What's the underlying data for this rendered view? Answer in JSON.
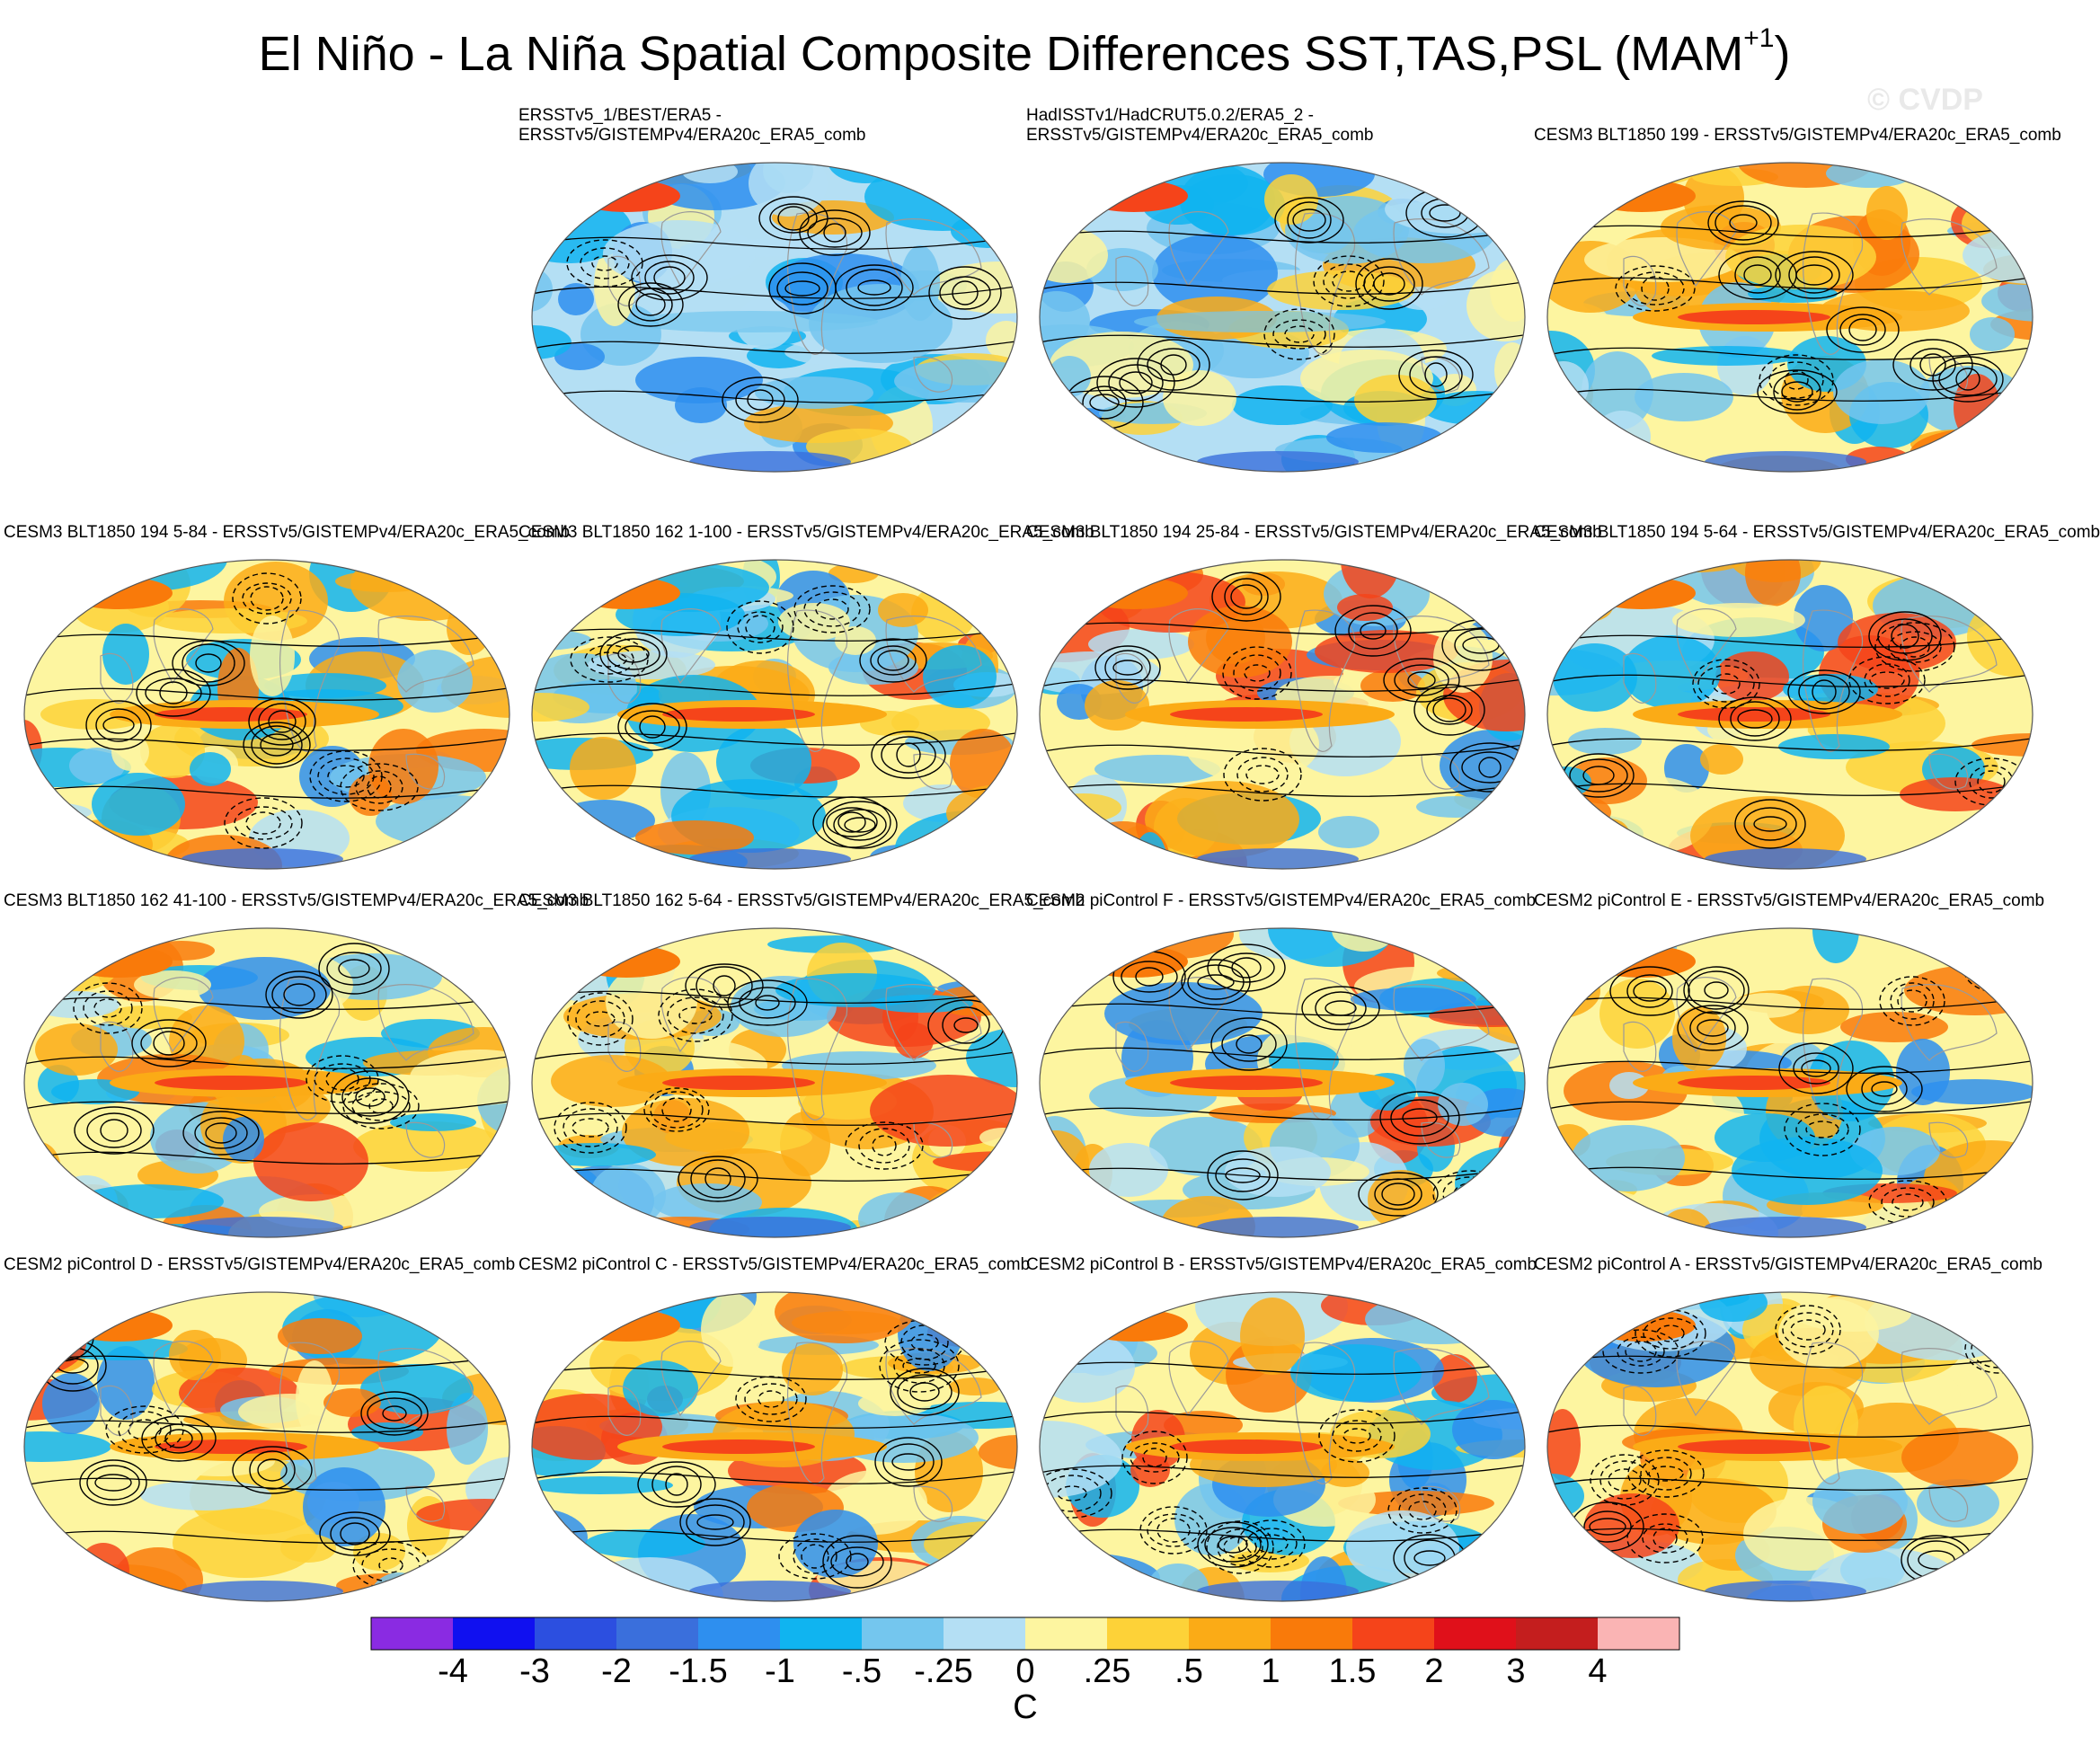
{
  "figure": {
    "title_main": "El Niño - La Niña Spatial Composite Differences SST,TAS,PSL (MAM",
    "title_sup": "+1",
    "title_close": ")",
    "watermark": "© CVDP"
  },
  "panels": [
    {
      "row": 0,
      "col": 1,
      "lines": [
        "ERSSTv5_1/BEST/ERA5 -",
        "ERSSTv5/GISTEMPv4/ERA20c_ERA5_comb"
      ],
      "pattern": "obs"
    },
    {
      "row": 0,
      "col": 2,
      "lines": [
        "HadISSTv1/HadCRUT5.0.2/ERA5_2 -",
        "ERSSTv5/GISTEMPv4/ERA20c_ERA5_comb"
      ],
      "pattern": "obs"
    },
    {
      "row": 0,
      "col": 3,
      "lines": [
        "",
        "CESM3 BLT1850 199 - ERSSTv5/GISTEMPv4/ERA20c_ERA5_comb"
      ],
      "pattern": "model"
    },
    {
      "row": 1,
      "col": 0,
      "lines": [
        "CESM3 BLT1850 194 5-84 - ERSSTv5/GISTEMPv4/ERA20c_ERA5_comb"
      ],
      "pattern": "model",
      "clip_left": true
    },
    {
      "row": 1,
      "col": 1,
      "lines": [
        "CESM3 BLT1850 162 1-100 - ERSSTv5/GISTEMPv4/ERA20c_ERA5_comb"
      ],
      "pattern": "model"
    },
    {
      "row": 1,
      "col": 2,
      "lines": [
        "CESM3 BLT1850 194 25-84 - ERSSTv5/GISTEMPv4/ERA20c_ERA5_comb"
      ],
      "pattern": "model"
    },
    {
      "row": 1,
      "col": 3,
      "lines": [
        "CESM3 BLT1850 194 5-64 - ERSSTv5/GISTEMPv4/ERA20c_ERA5_comb"
      ],
      "pattern": "model"
    },
    {
      "row": 2,
      "col": 0,
      "lines": [
        "CESM3 BLT1850 162 41-100 - ERSSTv5/GISTEMPv4/ERA20c_ERA5_comb"
      ],
      "pattern": "model",
      "clip_left": true
    },
    {
      "row": 2,
      "col": 1,
      "lines": [
        "CESM3 BLT1850 162 5-64 - ERSSTv5/GISTEMPv4/ERA20c_ERA5_comb"
      ],
      "pattern": "model"
    },
    {
      "row": 2,
      "col": 2,
      "lines": [
        "CESM2 piControl F - ERSSTv5/GISTEMPv4/ERA20c_ERA5_comb"
      ],
      "pattern": "model"
    },
    {
      "row": 2,
      "col": 3,
      "lines": [
        "CESM2 piControl E - ERSSTv5/GISTEMPv4/ERA20c_ERA5_comb"
      ],
      "pattern": "model"
    },
    {
      "row": 3,
      "col": 0,
      "lines": [
        "CESM2 piControl D - ERSSTv5/GISTEMPv4/ERA20c_ERA5_comb"
      ],
      "pattern": "model",
      "clip_left": true
    },
    {
      "row": 3,
      "col": 1,
      "lines": [
        "CESM2 piControl C - ERSSTv5/GISTEMPv4/ERA20c_ERA5_comb"
      ],
      "pattern": "model"
    },
    {
      "row": 3,
      "col": 2,
      "lines": [
        "CESM2 piControl B - ERSSTv5/GISTEMPv4/ERA20c_ERA5_comb"
      ],
      "pattern": "model"
    },
    {
      "row": 3,
      "col": 3,
      "lines": [
        "CESM2 piControl A - ERSSTv5/GISTEMPv4/ERA20c_ERA5_comb"
      ],
      "pattern": "model"
    }
  ],
  "colorbar": {
    "colors": [
      "#8a2be2",
      "#1010f0",
      "#2c4fe0",
      "#3a6fdc",
      "#2e8fef",
      "#10b4f0",
      "#74c6ee",
      "#b4dff4",
      "#fdf5a0",
      "#fdd238",
      "#fbab16",
      "#f97a0a",
      "#f5441a",
      "#e0101a",
      "#c41e1e",
      "#fab4b4"
    ],
    "labels": [
      "-4",
      "-3",
      "-2",
      "-1.5",
      "-1",
      "-.5",
      "-.25",
      "0",
      ".25",
      ".5",
      "1",
      "1.5",
      "2",
      "3",
      "4"
    ],
    "units": "C"
  }
}
